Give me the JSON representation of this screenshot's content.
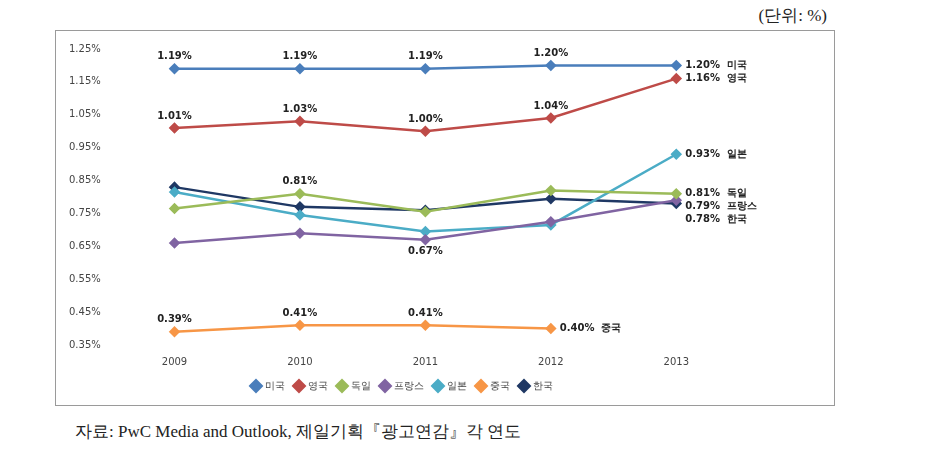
{
  "chart_data": {
    "type": "line",
    "unit_note": "(단위: %)",
    "source": "자료: PwC Media and Outlook, 제일기획『광고연감』각 연도",
    "categories": [
      "2009",
      "2010",
      "2011",
      "2012",
      "2013"
    ],
    "ylim": [
      0.35,
      1.25
    ],
    "yticks": [
      {
        "value": 0.35,
        "label": "0.35%"
      },
      {
        "value": 0.45,
        "label": "0.45%"
      },
      {
        "value": 0.55,
        "label": "0.55%"
      },
      {
        "value": 0.65,
        "label": "0.65%"
      },
      {
        "value": 0.75,
        "label": "0.75%"
      },
      {
        "value": 0.85,
        "label": "0.85%"
      },
      {
        "value": 0.95,
        "label": "0.95%"
      },
      {
        "value": 1.05,
        "label": "1.05%"
      },
      {
        "value": 1.15,
        "label": "1.15%"
      },
      {
        "value": 1.25,
        "label": "1.25%"
      }
    ],
    "grid": false,
    "legend": "bottom",
    "data_labels": true,
    "marker": "diamond",
    "series": [
      {
        "name": "미국",
        "color": "#4a7ebb",
        "values": [
          1.19,
          1.19,
          1.19,
          1.2,
          1.2
        ],
        "value_labels": [
          "1.19%",
          "1.19%",
          "1.19%",
          "1.20%",
          "1.20%"
        ]
      },
      {
        "name": "영국",
        "color": "#be4b48",
        "values": [
          1.01,
          1.03,
          1.0,
          1.04,
          1.16
        ],
        "value_labels": [
          "1.01%",
          "1.03%",
          "1.00%",
          "1.04%",
          "1.16%"
        ]
      },
      {
        "name": "독일",
        "color": "#9bbb59",
        "values": [
          0.765,
          0.81,
          0.755,
          0.82,
          0.81
        ],
        "value_labels": [
          null,
          "0.81%",
          null,
          null,
          "0.81%"
        ]
      },
      {
        "name": "프랑스",
        "color": "#8064a2",
        "values": [
          0.66,
          0.69,
          0.67,
          0.725,
          0.79
        ],
        "value_labels": [
          null,
          null,
          "0.67%",
          null,
          "0.79%"
        ]
      },
      {
        "name": "일본",
        "color": "#4bacc6",
        "values": [
          0.815,
          0.745,
          0.695,
          0.715,
          0.93
        ],
        "value_labels": [
          null,
          null,
          null,
          null,
          "0.93%"
        ]
      },
      {
        "name": "중국",
        "color": "#f79646",
        "values": [
          0.39,
          0.41,
          0.41,
          0.4,
          null
        ],
        "value_labels": [
          "0.39%",
          "0.41%",
          "0.41%",
          "0.40%",
          null
        ]
      },
      {
        "name": "한국",
        "color": "#1f3864",
        "values": [
          0.83,
          0.77,
          0.76,
          0.795,
          0.78
        ],
        "value_labels": [
          null,
          null,
          null,
          null,
          "0.78%"
        ]
      }
    ]
  }
}
